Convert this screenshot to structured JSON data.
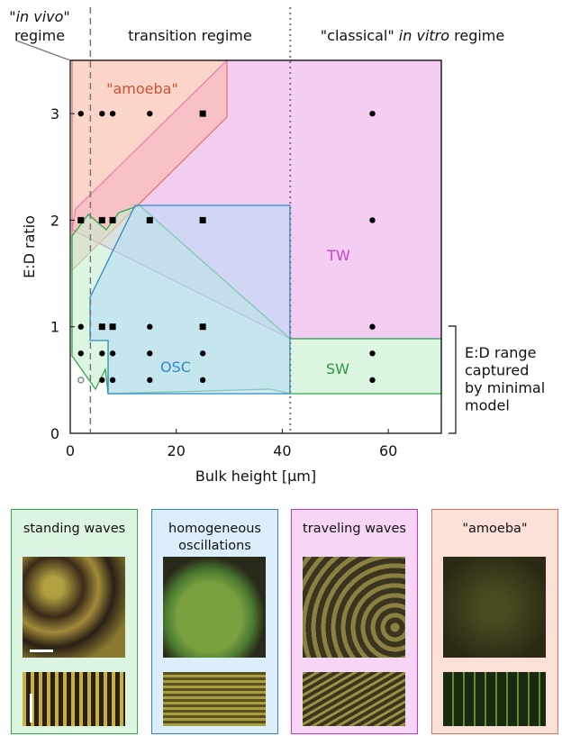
{
  "chart_data": {
    "type": "scatter",
    "xlabel": "Bulk height [μm]",
    "ylabel": "E:D ratio",
    "xlim": [
      0,
      70
    ],
    "ylim": [
      0,
      3.5
    ],
    "xticks": [
      0,
      20,
      40,
      60
    ],
    "yticks": [
      0,
      1,
      2,
      3
    ],
    "series": [
      {
        "marker": "circle",
        "color": "#000000",
        "x": [
          2,
          6,
          8,
          15,
          57,
          57,
          2,
          15,
          57,
          2,
          6,
          8,
          15,
          25,
          57,
          6,
          8,
          15,
          25,
          57
        ],
        "values": [
          3,
          3,
          3,
          3,
          3,
          2,
          1,
          1,
          1,
          0.75,
          0.75,
          0.75,
          0.75,
          0.75,
          0.75,
          0.5,
          0.5,
          0.5,
          0.5,
          0.5
        ]
      },
      {
        "marker": "square",
        "color": "#000000",
        "x": [
          25,
          2,
          6,
          8,
          15,
          25,
          6,
          8,
          25
        ],
        "values": [
          3,
          2,
          2,
          2,
          2,
          2,
          1,
          1,
          1
        ]
      },
      {
        "marker": "open-circle",
        "color": "#888888",
        "x": [
          2
        ],
        "values": [
          0.5
        ]
      }
    ],
    "reference_lines": [
      {
        "x": 3.8,
        "style": "dashed"
      },
      {
        "x": 41.5,
        "style": "dotted"
      }
    ],
    "regime_labels": {
      "in_vivo": [
        "\"",
        "in vivo",
        "\""
      ],
      "in_vivo_line2": "regime",
      "transition": "transition regime",
      "classical": [
        "\"classical\" ",
        "in vitro",
        " regime"
      ]
    },
    "region_labels": [
      "\"amoeba\"",
      "TW",
      "OSC",
      "SW"
    ],
    "bracket_label": [
      "E:D range",
      "captured",
      "by minimal",
      "model"
    ]
  },
  "panels": [
    "standing waves",
    "homogeneous oscillations",
    "traveling waves",
    "\"amoeba\""
  ]
}
